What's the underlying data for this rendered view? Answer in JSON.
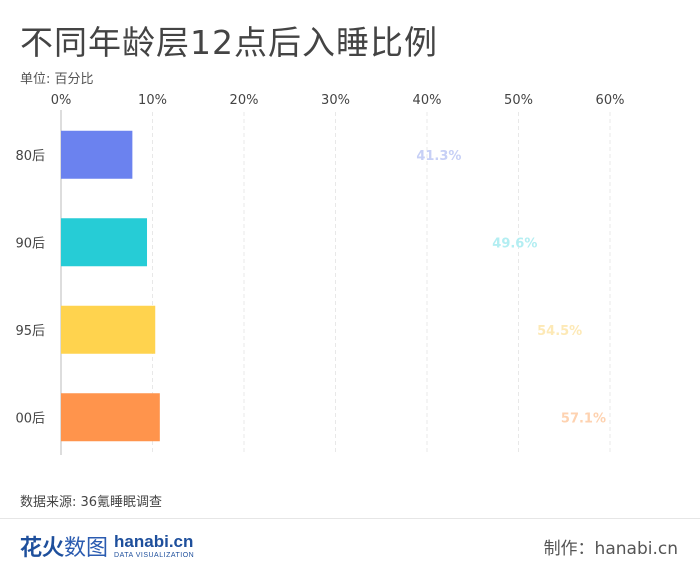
{
  "title": "不同年龄层12点后入睡比例",
  "unit_label": "单位: 百分比",
  "source": "数据来源: 36氪睡眠调查",
  "maker": "制作：hanabi.cn",
  "logo": {
    "cn_bold": "花火",
    "cn_thin": "数图",
    "en": "hanabi.cn",
    "sub": "DATA VISUALIZATION"
  },
  "chart_data": {
    "type": "bar",
    "orientation": "horizontal",
    "categories": [
      "80后",
      "90后",
      "95后",
      "00后"
    ],
    "values": [
      41.3,
      49.6,
      54.5,
      57.1
    ],
    "value_labels": [
      "41.3%",
      "49.6%",
      "54.5%",
      "57.1%"
    ],
    "bar_visual_values": [
      7.8,
      9.4,
      10.3,
      10.8
    ],
    "colors": [
      "#6b82ef",
      "#26ccd6",
      "#ffd34e",
      "#ff944c"
    ],
    "label_colors": [
      "#c7d0f6",
      "#b3eef2",
      "#fde9b6",
      "#fed2b0"
    ],
    "xticks": [
      "0%",
      "10%",
      "20%",
      "30%",
      "40%",
      "50%",
      "60%"
    ],
    "tick_values": [
      0,
      10,
      20,
      30,
      40,
      50,
      60
    ],
    "xlim": [
      0,
      65
    ],
    "xlabel": "",
    "ylabel": "",
    "grid": true,
    "axis_position": "top"
  }
}
